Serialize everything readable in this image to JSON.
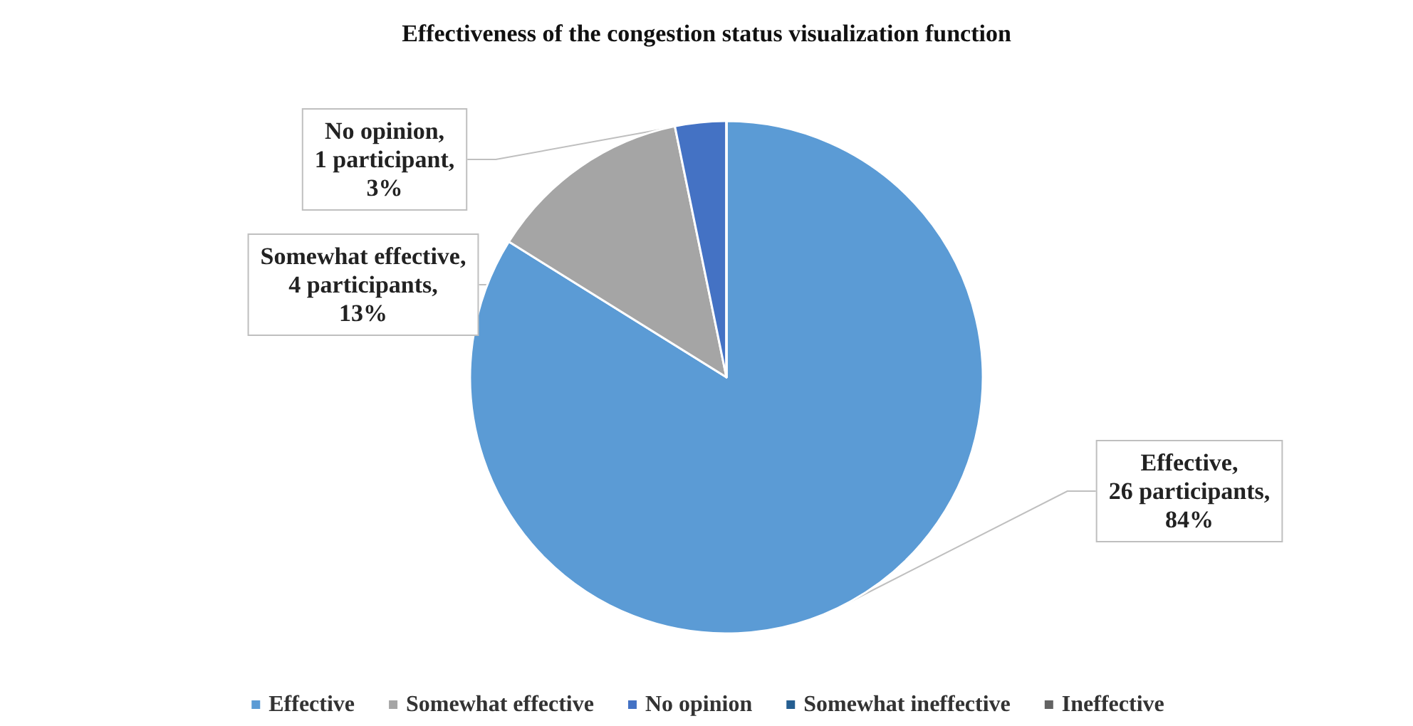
{
  "chart_data": {
    "type": "pie",
    "title": "Effectiveness of the congestion status visualization function",
    "categories": [
      "Effective",
      "Somewhat effective",
      "No opinion",
      "Somewhat ineffective",
      "Ineffective"
    ],
    "values": [
      26,
      4,
      1,
      0,
      0
    ],
    "value_labels": [
      "Effective, 26 participants, 84%",
      "Somewhat effective, 4 participants, 13%",
      "No opinion, 1 participant, 3%",
      null,
      null
    ],
    "colors": [
      "#5b9bd5",
      "#a5a5a5",
      "#4472c4",
      "#255e91",
      "#636363"
    ],
    "legend": "bottom"
  }
}
